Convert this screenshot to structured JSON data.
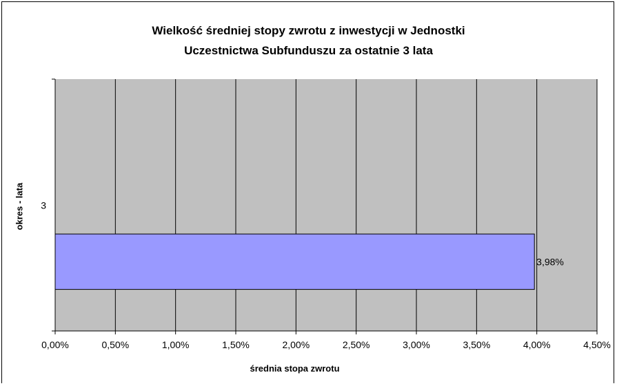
{
  "chart_data": {
    "type": "bar",
    "orientation": "horizontal",
    "title": [
      "Wielkość średniej stopy zwrotu z inwestycji w Jednostki",
      "Uczestnictwa Subfunduszu za ostatnie 3 lata"
    ],
    "xlabel": "średnia stopa zwrotu",
    "ylabel": "okres - lata",
    "categories": [
      "3"
    ],
    "values": [
      3.98
    ],
    "data_labels": [
      "3,98%"
    ],
    "xlim": [
      0,
      4.5
    ],
    "x_ticks": [
      "0,00%",
      "0,50%",
      "1,00%",
      "1,50%",
      "2,00%",
      "2,50%",
      "3,00%",
      "3,50%",
      "4,00%",
      "4,50%"
    ],
    "grid": true,
    "legend": "none",
    "colors": {
      "plot_background": "#c0c0c0",
      "bar_fill": "#9999ff",
      "gridline": "#000000"
    }
  }
}
